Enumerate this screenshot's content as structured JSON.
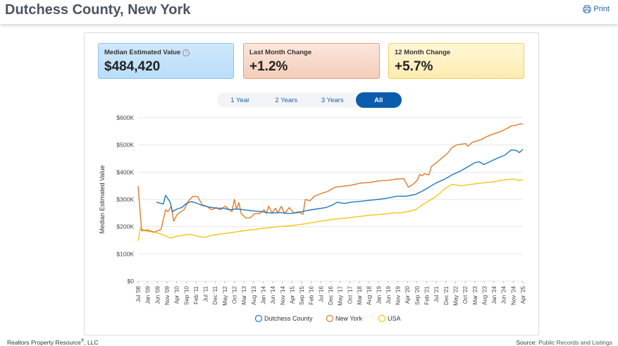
{
  "header": {
    "title": "Dutchess County, New York",
    "print_label": "Print"
  },
  "cards": {
    "median": {
      "label": "Median Estimated Value",
      "value": "$484,420"
    },
    "month": {
      "label": "Last Month Change",
      "value": "+1.2%"
    },
    "year": {
      "label": "12 Month Change",
      "value": "+5.7%"
    }
  },
  "range_tabs": [
    "1 Year",
    "2 Years",
    "3 Years",
    "All"
  ],
  "footer": {
    "company": "Realtors Property Resource",
    "company_suffix": ", LLC",
    "source_label": "Source:",
    "source_value": "Public Records and Listings"
  },
  "colors": {
    "dutchess": "#1f78c1",
    "newyork": "#e07b2a",
    "usa": "#f5c518"
  },
  "chart_data": {
    "type": "line",
    "ylabel": "Median Estimated Value",
    "ylim": [
      0,
      600000
    ],
    "y_ticks": [
      0,
      100000,
      200000,
      300000,
      400000,
      500000,
      600000
    ],
    "y_tick_labels": [
      "$0",
      "$100K",
      "$200K",
      "$300K",
      "$400K",
      "$500K",
      "$600K"
    ],
    "x_tick_labels": [
      "Jul '08",
      "Jan '09",
      "Jun '09",
      "Nov '09",
      "Apr '10",
      "Sep '10",
      "Feb '11",
      "Jul '11",
      "Dec '11",
      "May '12",
      "Oct '12",
      "Mar '13",
      "Aug '13",
      "Jan '14",
      "Jun '14",
      "Nov '14",
      "Apr '15",
      "Sep '15",
      "Feb '16",
      "Jul '16",
      "Dec '16",
      "May '17",
      "Oct '17",
      "Mar '18",
      "Aug '18",
      "Jan '19",
      "Jun '19",
      "Nov '19",
      "Apr '20",
      "Sep '20",
      "Feb '21",
      "Jul '21",
      "Dec '21",
      "May '22",
      "Oct '22",
      "Mar '23",
      "Aug '23",
      "Jan '24",
      "Jun '24",
      "Nov '24",
      "Apr '25"
    ],
    "x_range": [
      2008.5,
      2025.3
    ],
    "series": [
      {
        "name": "Dutchess County",
        "points": [
          [
            2009.3,
            290000
          ],
          [
            2009.6,
            283000
          ],
          [
            2009.7,
            315000
          ],
          [
            2009.9,
            290000
          ],
          [
            2010.0,
            255000
          ],
          [
            2010.2,
            265000
          ],
          [
            2010.4,
            270000
          ],
          [
            2010.6,
            285000
          ],
          [
            2010.8,
            292000
          ],
          [
            2011.0,
            288000
          ],
          [
            2011.3,
            278000
          ],
          [
            2011.6,
            272000
          ],
          [
            2011.9,
            268000
          ],
          [
            2012.2,
            268000
          ],
          [
            2012.5,
            262000
          ],
          [
            2012.8,
            265000
          ],
          [
            2013.1,
            262000
          ],
          [
            2013.5,
            258000
          ],
          [
            2013.9,
            255000
          ],
          [
            2014.3,
            250000
          ],
          [
            2014.7,
            252000
          ],
          [
            2015.1,
            248000
          ],
          [
            2015.5,
            252000
          ],
          [
            2015.9,
            260000
          ],
          [
            2016.3,
            265000
          ],
          [
            2016.7,
            270000
          ],
          [
            2017.0,
            280000
          ],
          [
            2017.2,
            290000
          ],
          [
            2017.5,
            285000
          ],
          [
            2017.8,
            290000
          ],
          [
            2018.2,
            293000
          ],
          [
            2018.6,
            297000
          ],
          [
            2019.0,
            300000
          ],
          [
            2019.4,
            305000
          ],
          [
            2019.8,
            312000
          ],
          [
            2020.2,
            312000
          ],
          [
            2020.6,
            318000
          ],
          [
            2020.9,
            330000
          ],
          [
            2021.2,
            345000
          ],
          [
            2021.5,
            360000
          ],
          [
            2021.9,
            375000
          ],
          [
            2022.2,
            390000
          ],
          [
            2022.6,
            405000
          ],
          [
            2022.9,
            420000
          ],
          [
            2023.2,
            435000
          ],
          [
            2023.4,
            438000
          ],
          [
            2023.6,
            428000
          ],
          [
            2023.9,
            440000
          ],
          [
            2024.2,
            452000
          ],
          [
            2024.5,
            462000
          ],
          [
            2024.8,
            482000
          ],
          [
            2025.0,
            480000
          ],
          [
            2025.15,
            472000
          ],
          [
            2025.3,
            484000
          ]
        ]
      },
      {
        "name": "New York",
        "points": [
          [
            2008.5,
            350000
          ],
          [
            2008.65,
            185000
          ],
          [
            2008.9,
            188000
          ],
          [
            2009.2,
            180000
          ],
          [
            2009.5,
            190000
          ],
          [
            2009.7,
            262000
          ],
          [
            2009.8,
            255000
          ],
          [
            2009.95,
            275000
          ],
          [
            2010.05,
            220000
          ],
          [
            2010.2,
            245000
          ],
          [
            2010.5,
            262000
          ],
          [
            2010.7,
            295000
          ],
          [
            2010.9,
            312000
          ],
          [
            2011.1,
            310000
          ],
          [
            2011.3,
            280000
          ],
          [
            2011.5,
            275000
          ],
          [
            2011.7,
            262000
          ],
          [
            2011.9,
            270000
          ],
          [
            2012.1,
            262000
          ],
          [
            2012.3,
            275000
          ],
          [
            2012.5,
            262000
          ],
          [
            2012.6,
            255000
          ],
          [
            2012.7,
            300000
          ],
          [
            2012.8,
            265000
          ],
          [
            2012.9,
            288000
          ],
          [
            2013.0,
            248000
          ],
          [
            2013.2,
            232000
          ],
          [
            2013.4,
            233000
          ],
          [
            2013.6,
            248000
          ],
          [
            2013.8,
            248000
          ],
          [
            2014.0,
            262000
          ],
          [
            2014.1,
            248000
          ],
          [
            2014.2,
            275000
          ],
          [
            2014.35,
            250000
          ],
          [
            2014.5,
            268000
          ],
          [
            2014.6,
            250000
          ],
          [
            2014.75,
            275000
          ],
          [
            2014.9,
            248000
          ],
          [
            2015.1,
            270000
          ],
          [
            2015.3,
            250000
          ],
          [
            2015.5,
            255000
          ],
          [
            2015.7,
            245000
          ],
          [
            2015.8,
            300000
          ],
          [
            2016.0,
            295000
          ],
          [
            2016.2,
            312000
          ],
          [
            2016.5,
            322000
          ],
          [
            2016.8,
            330000
          ],
          [
            2017.1,
            345000
          ],
          [
            2017.4,
            348000
          ],
          [
            2017.8,
            352000
          ],
          [
            2018.2,
            360000
          ],
          [
            2018.6,
            362000
          ],
          [
            2019.0,
            368000
          ],
          [
            2019.4,
            370000
          ],
          [
            2019.8,
            375000
          ],
          [
            2020.1,
            376000
          ],
          [
            2020.3,
            345000
          ],
          [
            2020.5,
            355000
          ],
          [
            2020.7,
            372000
          ],
          [
            2020.8,
            392000
          ],
          [
            2020.9,
            387000
          ],
          [
            2021.0,
            395000
          ],
          [
            2021.2,
            390000
          ],
          [
            2021.3,
            420000
          ],
          [
            2021.6,
            440000
          ],
          [
            2021.8,
            455000
          ],
          [
            2022.0,
            468000
          ],
          [
            2022.2,
            490000
          ],
          [
            2022.4,
            500000
          ],
          [
            2022.8,
            505000
          ],
          [
            2022.9,
            495000
          ],
          [
            2023.1,
            510000
          ],
          [
            2023.5,
            520000
          ],
          [
            2023.7,
            530000
          ],
          [
            2024.0,
            540000
          ],
          [
            2024.3,
            548000
          ],
          [
            2024.6,
            560000
          ],
          [
            2024.8,
            570000
          ],
          [
            2025.0,
            572000
          ],
          [
            2025.2,
            578000
          ],
          [
            2025.3,
            575000
          ]
        ]
      },
      {
        "name": "USA",
        "points": [
          [
            2008.5,
            148000
          ],
          [
            2008.6,
            195000
          ],
          [
            2008.8,
            185000
          ],
          [
            2009.0,
            182000
          ],
          [
            2009.3,
            178000
          ],
          [
            2009.6,
            170000
          ],
          [
            2009.9,
            158000
          ],
          [
            2010.2,
            165000
          ],
          [
            2010.5,
            170000
          ],
          [
            2010.8,
            172000
          ],
          [
            2011.1,
            165000
          ],
          [
            2011.4,
            160000
          ],
          [
            2011.7,
            168000
          ],
          [
            2012.0,
            172000
          ],
          [
            2012.3,
            175000
          ],
          [
            2012.7,
            180000
          ],
          [
            2013.1,
            185000
          ],
          [
            2013.6,
            190000
          ],
          [
            2014.1,
            195000
          ],
          [
            2014.6,
            200000
          ],
          [
            2015.1,
            203000
          ],
          [
            2015.6,
            208000
          ],
          [
            2016.1,
            215000
          ],
          [
            2016.6,
            222000
          ],
          [
            2017.1,
            228000
          ],
          [
            2017.6,
            232000
          ],
          [
            2018.1,
            237000
          ],
          [
            2018.6,
            242000
          ],
          [
            2019.1,
            245000
          ],
          [
            2019.6,
            250000
          ],
          [
            2020.1,
            252000
          ],
          [
            2020.6,
            262000
          ],
          [
            2021.0,
            285000
          ],
          [
            2021.5,
            310000
          ],
          [
            2021.9,
            340000
          ],
          [
            2022.2,
            355000
          ],
          [
            2022.6,
            350000
          ],
          [
            2023.0,
            355000
          ],
          [
            2023.5,
            360000
          ],
          [
            2024.0,
            365000
          ],
          [
            2024.5,
            372000
          ],
          [
            2024.9,
            375000
          ],
          [
            2025.1,
            370000
          ],
          [
            2025.3,
            372000
          ]
        ]
      }
    ]
  }
}
